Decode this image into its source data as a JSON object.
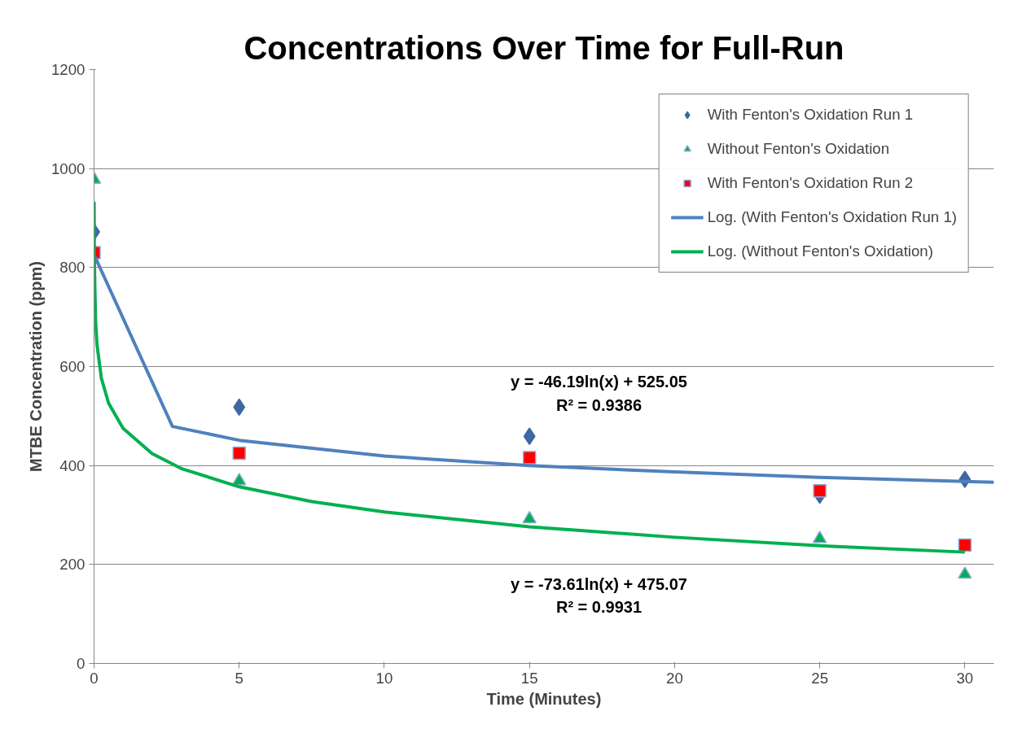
{
  "chart_data": {
    "type": "scatter",
    "title": "Concentrations Over Time for Full-Run",
    "xlabel": "Time (Minutes)",
    "ylabel": "MTBE Concentration (ppm)",
    "xlim": [
      0,
      31
    ],
    "xticks": [
      0,
      5,
      10,
      15,
      20,
      25,
      30
    ],
    "ylim": [
      0,
      1200
    ],
    "yticks": [
      0,
      200,
      400,
      600,
      800,
      1000,
      1200
    ],
    "grid": "y",
    "legend": "top right",
    "series": [
      {
        "name": "With Fenton's Oxidation Run 1",
        "marker": "diamond",
        "color": "#3f67a3",
        "x": [
          0,
          5,
          15,
          25,
          30
        ],
        "values": [
          872,
          518,
          459,
          340,
          372
        ]
      },
      {
        "name": "Without Fenton's Oxidation",
        "marker": "triangle",
        "color": "#00b050",
        "x": [
          0,
          5,
          15,
          25,
          30
        ],
        "values": [
          978,
          369,
          292,
          252,
          180
        ]
      },
      {
        "name": "With Fenton's Oxidation Run 2",
        "marker": "square",
        "color": "#ff0000",
        "x": [
          0,
          5,
          15,
          25,
          30
        ],
        "values": [
          830,
          425,
          416,
          349,
          239
        ]
      },
      {
        "name": "Log. (With Fenton's Oxidation Run 1)",
        "type": "line",
        "marker": "none",
        "color": "#4f81bd",
        "x": [
          0,
          2.7,
          5,
          10,
          15,
          20,
          25,
          30,
          31
        ],
        "values": [
          826,
          479,
          451,
          419,
          400,
          387,
          376,
          368,
          366
        ]
      },
      {
        "name": "Log. (Without Fenton's Oxidation)",
        "type": "line",
        "marker": "none",
        "color": "#00b050",
        "x": [
          0.002,
          0.01,
          0.05,
          0.1,
          0.25,
          0.5,
          1,
          2,
          3,
          5,
          7.5,
          10,
          15,
          20,
          25,
          30
        ],
        "values": [
          933,
          814,
          696,
          645,
          577,
          526,
          475,
          424,
          394,
          357,
          327,
          306,
          276,
          255,
          238,
          225
        ]
      }
    ],
    "annotations": [
      "y = -46.19ln(x) + 525.05\nR² = 0.9386",
      "y = -73.61ln(x) + 475.07\nR² = 0.9931"
    ]
  }
}
